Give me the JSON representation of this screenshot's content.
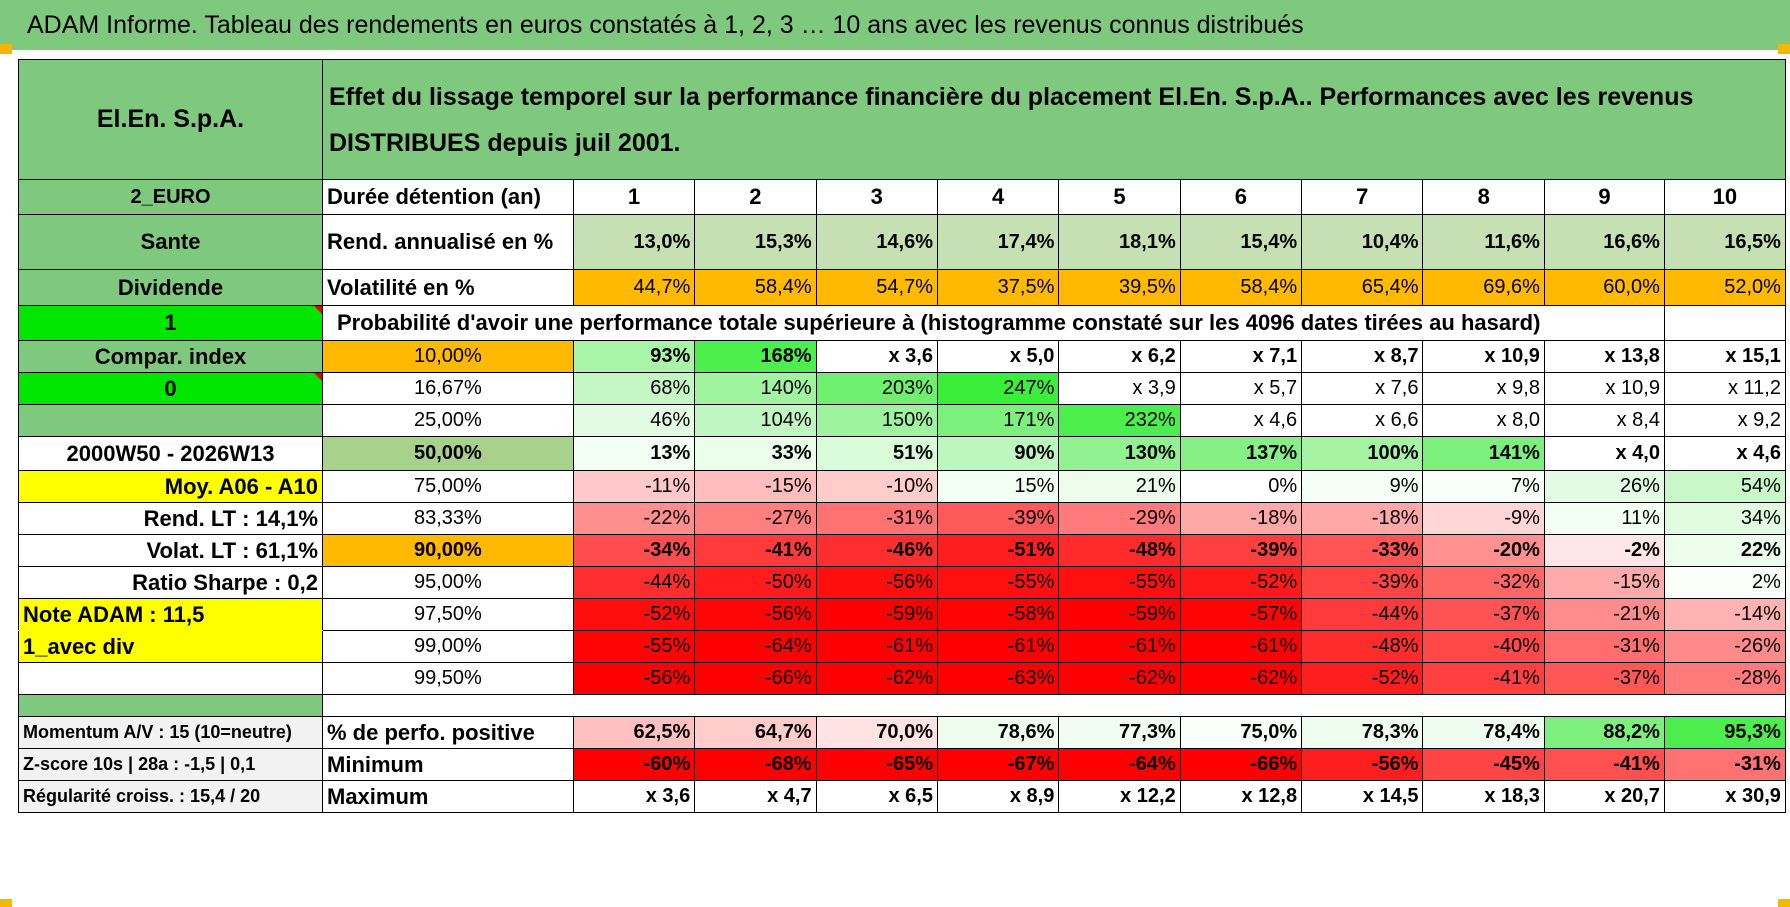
{
  "title": "ADAM Informe. Tableau des rendements en euros constatés à 1, 2, 3 … 10 ans avec les revenus connus distribués",
  "header": {
    "fund_name": "El.En. S.p.A.",
    "description": "Effet du lissage temporel sur la performance financière du placement El.En. S.p.A.. Performances avec les revenus DISTRIBUES depuis juil 2001."
  },
  "left_labels": {
    "currency": "2_EURO",
    "sector": "Sante",
    "income": "Dividende",
    "one": "1",
    "compar_index": "Compar. index",
    "zero": "0",
    "empty": "",
    "period": "2000W50 - 2026W13",
    "moy": "Moy. A06 - A10",
    "rend_lt": "Rend. LT :    14,1%",
    "volat_lt": "Volat. LT :    61,1%",
    "sharpe": "Ratio Sharpe :     0,2",
    "note": "Note ADAM : 11,5",
    "avec_div": "1_avec div"
  },
  "duration": {
    "label": "Durée détention (an)",
    "years": [
      "1",
      "2",
      "3",
      "4",
      "5",
      "6",
      "7",
      "8",
      "9",
      "10"
    ]
  },
  "rend": {
    "label": "Rend. annualisé en %",
    "values": [
      "13,0%",
      "15,3%",
      "14,6%",
      "17,4%",
      "18,1%",
      "15,4%",
      "10,4%",
      "11,6%",
      "16,6%",
      "16,5%"
    ]
  },
  "volat": {
    "label": "Volatilité en %",
    "values": [
      "44,7%",
      "58,4%",
      "54,7%",
      "37,5%",
      "39,5%",
      "58,4%",
      "65,4%",
      "69,6%",
      "60,0%",
      "52,0%"
    ]
  },
  "prob_title": "Probabilité d'avoir une performance totale supérieure à (histogramme constaté sur les 4096 dates tirées au hasard)",
  "prob_rows": [
    {
      "pct": "10,00%",
      "values": [
        "93%",
        "168%",
        "x 3,6",
        "x 5,0",
        "x 6,2",
        "x 7,1",
        "x 8,7",
        "x 10,9",
        "x 13,8",
        "x 15,1"
      ]
    },
    {
      "pct": "16,67%",
      "values": [
        "68%",
        "140%",
        "203%",
        "247%",
        "x 3,9",
        "x 5,7",
        "x 7,6",
        "x 9,8",
        "x 10,9",
        "x 11,2"
      ]
    },
    {
      "pct": "25,00%",
      "values": [
        "46%",
        "104%",
        "150%",
        "171%",
        "232%",
        "x 4,6",
        "x 6,6",
        "x 8,0",
        "x 8,4",
        "x 9,2"
      ]
    },
    {
      "pct": "50,00%",
      "values": [
        "13%",
        "33%",
        "51%",
        "90%",
        "130%",
        "137%",
        "100%",
        "141%",
        "x 4,0",
        "x 4,6"
      ]
    },
    {
      "pct": "75,00%",
      "values": [
        "-11%",
        "-15%",
        "-10%",
        "15%",
        "21%",
        "0%",
        "9%",
        "7%",
        "26%",
        "54%"
      ]
    },
    {
      "pct": "83,33%",
      "values": [
        "-22%",
        "-27%",
        "-31%",
        "-39%",
        "-29%",
        "-18%",
        "-18%",
        "-9%",
        "11%",
        "34%"
      ]
    },
    {
      "pct": "90,00%",
      "values": [
        "-34%",
        "-41%",
        "-46%",
        "-51%",
        "-48%",
        "-39%",
        "-33%",
        "-20%",
        "-2%",
        "22%"
      ]
    },
    {
      "pct": "95,00%",
      "values": [
        "-44%",
        "-50%",
        "-56%",
        "-55%",
        "-55%",
        "-52%",
        "-39%",
        "-32%",
        "-15%",
        "2%"
      ]
    },
    {
      "pct": "97,50%",
      "values": [
        "-52%",
        "-56%",
        "-59%",
        "-58%",
        "-59%",
        "-57%",
        "-44%",
        "-37%",
        "-21%",
        "-14%"
      ]
    },
    {
      "pct": "99,00%",
      "values": [
        "-55%",
        "-64%",
        "-61%",
        "-61%",
        "-61%",
        "-61%",
        "-48%",
        "-40%",
        "-31%",
        "-26%"
      ]
    },
    {
      "pct": "99,50%",
      "values": [
        "-56%",
        "-66%",
        "-62%",
        "-63%",
        "-62%",
        "-62%",
        "-52%",
        "-41%",
        "-37%",
        "-28%"
      ]
    }
  ],
  "bottom": {
    "momentum": {
      "label": "Momentum A/V : 15 (10=neutre)",
      "sub": "% de perfo. positive",
      "values": [
        "62,5%",
        "64,7%",
        "70,0%",
        "78,6%",
        "77,3%",
        "75,0%",
        "78,3%",
        "78,4%",
        "88,2%",
        "95,3%"
      ]
    },
    "zscore": {
      "label": "Z-score 10s | 28a : -1,5 | 0,1",
      "sub": "Minimum",
      "values": [
        "-60%",
        "-68%",
        "-65%",
        "-67%",
        "-64%",
        "-66%",
        "-56%",
        "-45%",
        "-41%",
        "-31%"
      ]
    },
    "regularite": {
      "label": "Régularité croiss. : 15,4 / 20",
      "sub": "Maximum",
      "values": [
        "x 3,6",
        "x 4,7",
        "x 6,5",
        "x 8,9",
        "x 12,2",
        "x 12,8",
        "x 14,5",
        "x 18,3",
        "x 20,7",
        "x 30,9"
      ]
    }
  },
  "colors": {
    "header_green": "#7fc97f",
    "bright_green": "#00e600",
    "yellow": "#ffff00",
    "orange": "#ffb900",
    "cells": {
      "rend": [
        "#c6e0b4",
        "#c6e0b4",
        "#c6e0b4",
        "#c6e0b4",
        "#c6e0b4",
        "#c6e0b4",
        "#c6e0b4",
        "#c6e0b4",
        "#c6e0b4",
        "#c6e0b4"
      ],
      "volat": [
        "#ffb900",
        "#ffb900",
        "#ffb900",
        "#ffb900",
        "#ffb900",
        "#ffb900",
        "#ffb900",
        "#ffb900",
        "#ffb900",
        "#ffb900"
      ],
      "prob": [
        [
          "#a8f5a8",
          "#4cf04c",
          "#ffffff",
          "#ffffff",
          "#ffffff",
          "#ffffff",
          "#ffffff",
          "#ffffff",
          "#ffffff",
          "#ffffff"
        ],
        [
          "#c4f7c4",
          "#a0f4a0",
          "#6ef06e",
          "#3aee3a",
          "#ffffff",
          "#ffffff",
          "#ffffff",
          "#ffffff",
          "#ffffff",
          "#ffffff"
        ],
        [
          "#e2fbe2",
          "#c0f7c0",
          "#9ef39e",
          "#7cf07c",
          "#4cee4c",
          "#ffffff",
          "#ffffff",
          "#ffffff",
          "#ffffff",
          "#ffffff"
        ],
        [
          "#f4fff4",
          "#eafeea",
          "#d8fbd8",
          "#bdf7bd",
          "#92f292",
          "#86f086",
          "#a4f4a4",
          "#7cef7c",
          "#ffffff",
          "#ffffff"
        ],
        [
          "#ffc9c9",
          "#ffbdbd",
          "#ffcccc",
          "#f4fff4",
          "#ecfdec",
          "#ffffff",
          "#f6fff6",
          "#f8fff8",
          "#e2fbe2",
          "#c8f8c8"
        ],
        [
          "#ff8f8f",
          "#ff7f7f",
          "#ff7272",
          "#ff5a5a",
          "#ff7a7a",
          "#ffa8a8",
          "#ffa8a8",
          "#ffd6d6",
          "#f4fff4",
          "#e0fbe0"
        ],
        [
          "#ff4c4c",
          "#ff3a3a",
          "#ff2e2e",
          "#ff1e1e",
          "#ff2a2a",
          "#ff3e3e",
          "#ff5454",
          "#ff9090",
          "#ffe6e6",
          "#ecfdec"
        ],
        [
          "#ff2e2e",
          "#ff1c1c",
          "#ff0e0e",
          "#ff1010",
          "#ff1010",
          "#ff1a1a",
          "#ff4242",
          "#ff6666",
          "#ffaaaa",
          "#fbfffb"
        ],
        [
          "#ff0e0e",
          "#ff0606",
          "#ff0000",
          "#ff0202",
          "#ff0000",
          "#ff0404",
          "#ff3a3a",
          "#ff5252",
          "#ff8c8c",
          "#ffb2b2"
        ],
        [
          "#ff0404",
          "#ff0000",
          "#ff0000",
          "#ff0000",
          "#ff0000",
          "#ff0000",
          "#ff2c2c",
          "#ff4848",
          "#ff6e6e",
          "#ff8a8a"
        ],
        [
          "#ff0000",
          "#ff0000",
          "#ff0000",
          "#ff0000",
          "#ff0000",
          "#ff0000",
          "#ff1e1e",
          "#ff4040",
          "#ff5656",
          "#ff7a7a"
        ]
      ],
      "momentum": [
        "#ffc0c0",
        "#ffcccc",
        "#ffe2e2",
        "#eefcee",
        "#f0fdf0",
        "#fbfffb",
        "#eefcee",
        "#eefcee",
        "#7cef7c",
        "#4ced4c"
      ],
      "zscore": [
        "#ff0000",
        "#ff0000",
        "#ff0000",
        "#ff0000",
        "#ff0000",
        "#ff0000",
        "#ff1e1e",
        "#ff4444",
        "#ff5050",
        "#ff7272"
      ],
      "regularite": [
        "#ffffff",
        "#ffffff",
        "#ffffff",
        "#ffffff",
        "#ffffff",
        "#ffffff",
        "#ffffff",
        "#ffffff",
        "#ffffff",
        "#ffffff"
      ]
    }
  }
}
